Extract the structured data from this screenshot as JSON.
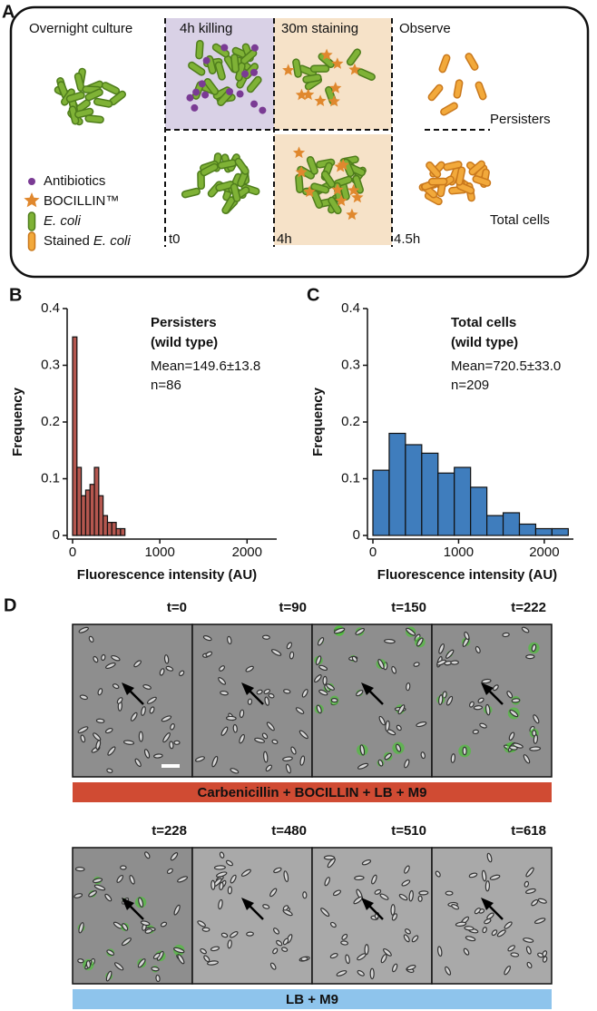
{
  "panel_a": {
    "label": "A",
    "steps": [
      "Overnight culture",
      "4h killing",
      "30m staining",
      "Observe"
    ],
    "outcomes": [
      "Persisters",
      "Total cells"
    ],
    "legend": [
      {
        "text": "Antibiotics"
      },
      {
        "text": "BOCILLIN™"
      },
      {
        "italic": "E. coli"
      },
      {
        "text": "Stained",
        "italic": "E. coli"
      }
    ],
    "times": [
      "t0",
      "4h",
      "4.5h"
    ]
  },
  "chart_data": [
    {
      "type": "histogram",
      "panel": "B",
      "title": [
        "Persisters",
        "(wild type)"
      ],
      "annotations": [
        "Mean=149.6±13.8",
        "n=86"
      ],
      "xlabel": "Fluorescence intensity (AU)",
      "ylabel": "Frequency",
      "bins": [
        0,
        50,
        100,
        150,
        200,
        250,
        300,
        350,
        400,
        450,
        500,
        550,
        600
      ],
      "values": [
        0.35,
        0.12,
        0.07,
        0.08,
        0.09,
        0.12,
        0.07,
        0.035,
        0.023,
        0.023,
        0.012,
        0.012
      ],
      "color": "#b5574f",
      "xlim": [
        0,
        2340
      ],
      "ylim": [
        0,
        0.4
      ],
      "xticks": [
        0,
        1000,
        2000
      ],
      "yticks": [
        0,
        0.1,
        0.2,
        0.3,
        0.4
      ]
    },
    {
      "type": "histogram",
      "panel": "C",
      "title": [
        "Total cells",
        "(wild type)"
      ],
      "annotations": [
        "Mean=720.5±33.0",
        "n=209"
      ],
      "xlabel": "Fluorescence intensity (AU)",
      "ylabel": "Frequency",
      "bins": [
        0,
        190,
        380,
        570,
        760,
        950,
        1140,
        1330,
        1520,
        1710,
        1900,
        2090,
        2280
      ],
      "values": [
        0.115,
        0.18,
        0.16,
        0.145,
        0.11,
        0.12,
        0.085,
        0.035,
        0.04,
        0.02,
        0.012,
        0.012
      ],
      "color": "#3f7dbd",
      "xlim": [
        0,
        2340
      ],
      "ylim": [
        0,
        0.4
      ],
      "xticks": [
        0,
        1000,
        2000
      ],
      "yticks": [
        0,
        0.1,
        0.2,
        0.3,
        0.4
      ]
    }
  ],
  "panel_d": {
    "label": "D",
    "rows": [
      {
        "times": [
          "t=0",
          "t=90",
          "t=150",
          "t=222"
        ],
        "condition": "Carbenicillin + BOCILLIN + LB + M9",
        "color": "#d04b33"
      },
      {
        "times": [
          "t=228",
          "t=480",
          "t=510",
          "t=618"
        ],
        "condition": "LB + M9",
        "color": "#8ec4ec"
      }
    ]
  }
}
